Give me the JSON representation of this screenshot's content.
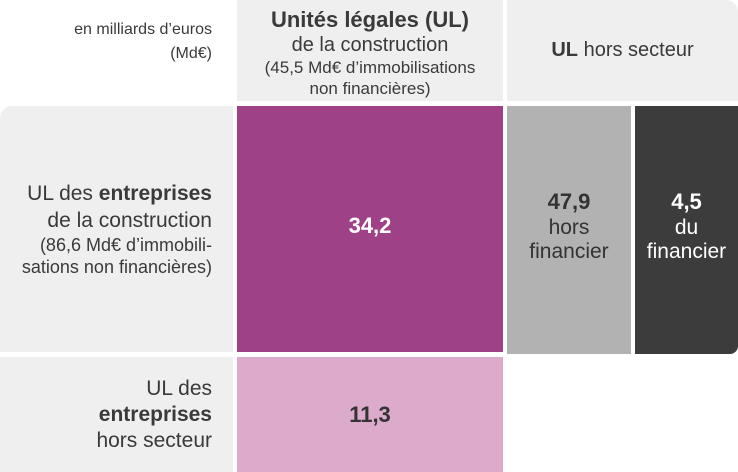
{
  "unit_note": [
    "en milliards d’euros",
    "(Md€)"
  ],
  "col_header_ul": {
    "title": "Unités légales (UL)",
    "line2": "de la construction",
    "line3": "(45,5 Md€ d’immobilisations",
    "line4": "non financières)"
  },
  "col_header_hors": {
    "bold": "UL",
    "rest": " hors secteur"
  },
  "row_header_ent": {
    "line1_pre": "UL des ",
    "line1_bold": "entreprises",
    "line2": "de la construction",
    "line3": "(86,6 Md€ d’immobili-",
    "line4": "sations non financières)"
  },
  "row_header_hors": {
    "line1": "UL des",
    "line2_bold": "entreprises",
    "line3": "hors secteur"
  },
  "cells": {
    "ent_ul": {
      "value": "34,2"
    },
    "ent_hors_non_fin": {
      "value": "47,9",
      "line1": "hors",
      "line2": "financier"
    },
    "ent_hors_fin": {
      "value": "4,5",
      "line1": "du",
      "line2": "financier"
    },
    "hors_ul": {
      "value": "11,3"
    }
  },
  "colors": {
    "purple": "#9e4186",
    "pink": "#dcabcc",
    "light_grey": "#b2b2b2",
    "dark_grey": "#3c3c3c",
    "panel_bg": "#efefef"
  }
}
